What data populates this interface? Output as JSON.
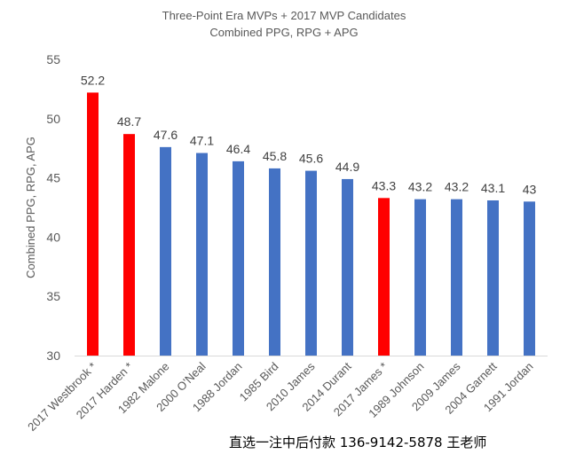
{
  "chart_data": {
    "type": "bar",
    "title": "Three-Point Era MVPs + 2017 MVP Candidates",
    "subtitle": "Combined PPG, RPG + APG",
    "ylabel": "Combined PPG, RPG, APG",
    "xlabel": "",
    "ylim": [
      30,
      55
    ],
    "yticks": [
      30,
      35,
      40,
      45,
      50,
      55
    ],
    "grid": false,
    "legend": "none",
    "categories": [
      "2017 Westbrook *",
      "2017 Harden *",
      "1982 Malone",
      "2000 O'Neal",
      "1988 Jordan",
      "1985 Bird",
      "2010 James",
      "2014 Durant",
      "2017 James *",
      "1989 Johnson",
      "2009 James",
      "2004 Garnett",
      "1991 Jordan"
    ],
    "values": [
      52.2,
      48.7,
      47.6,
      47.1,
      46.4,
      45.8,
      45.6,
      44.9,
      43.3,
      43.2,
      43.2,
      43.1,
      43
    ],
    "value_labels": [
      "52.2",
      "48.7",
      "47.6",
      "47.1",
      "46.4",
      "45.8",
      "45.6",
      "44.9",
      "43.3",
      "43.2",
      "43.2",
      "43.1",
      "43"
    ],
    "highlighted": [
      true,
      true,
      false,
      false,
      false,
      false,
      false,
      false,
      true,
      false,
      false,
      false,
      false
    ],
    "colors": {
      "highlight": "#ff0000",
      "default": "#4472c4",
      "axis": "#d9d9d9"
    }
  },
  "footer": {
    "text": "直选一注中后付款 136-9142-5878 王老师"
  }
}
